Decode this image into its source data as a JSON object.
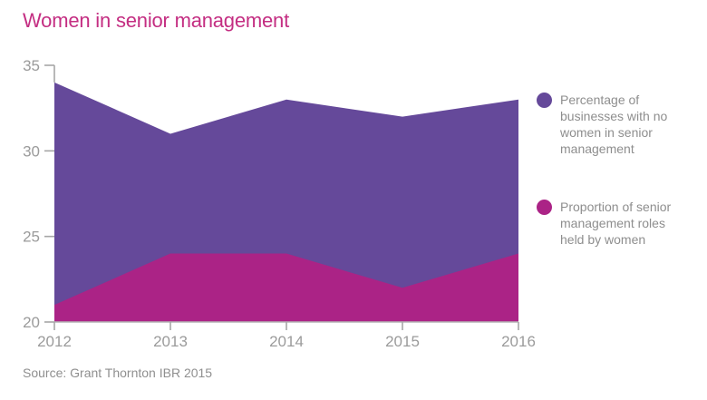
{
  "title": "Women in senior management",
  "source": "Source: Grant Thornton IBR 2015",
  "colors": {
    "title": "#c42e82",
    "axis_line": "#b4b4b4",
    "tick": "#a6a6a6",
    "axis_label": "#9b9b9b",
    "legend_text": "#8e8e8e",
    "background": "#ffffff"
  },
  "legend": {
    "items": [
      {
        "label": "Percentage of\nbusinesses with no\nwomen in senior\nmanagement"
      },
      {
        "label": "Proportion of senior\nmanagement roles\nheld by women"
      }
    ]
  },
  "chart_data": {
    "type": "area",
    "x": [
      2012,
      2013,
      2014,
      2015,
      2016
    ],
    "series": [
      {
        "name": "Percentage of businesses with no women in senior management",
        "values": [
          34,
          31,
          33,
          32,
          33
        ],
        "color": "#65499a"
      },
      {
        "name": "Proportion of senior management roles held by women",
        "values": [
          21,
          24,
          24,
          22,
          24
        ],
        "color": "#ab2386"
      }
    ],
    "ylim": [
      20,
      35
    ],
    "yticks": [
      20,
      25,
      30,
      35
    ],
    "baseline": 20,
    "overlap": true,
    "grid": false,
    "xlabel": "",
    "ylabel": "",
    "legend_position": "right"
  }
}
